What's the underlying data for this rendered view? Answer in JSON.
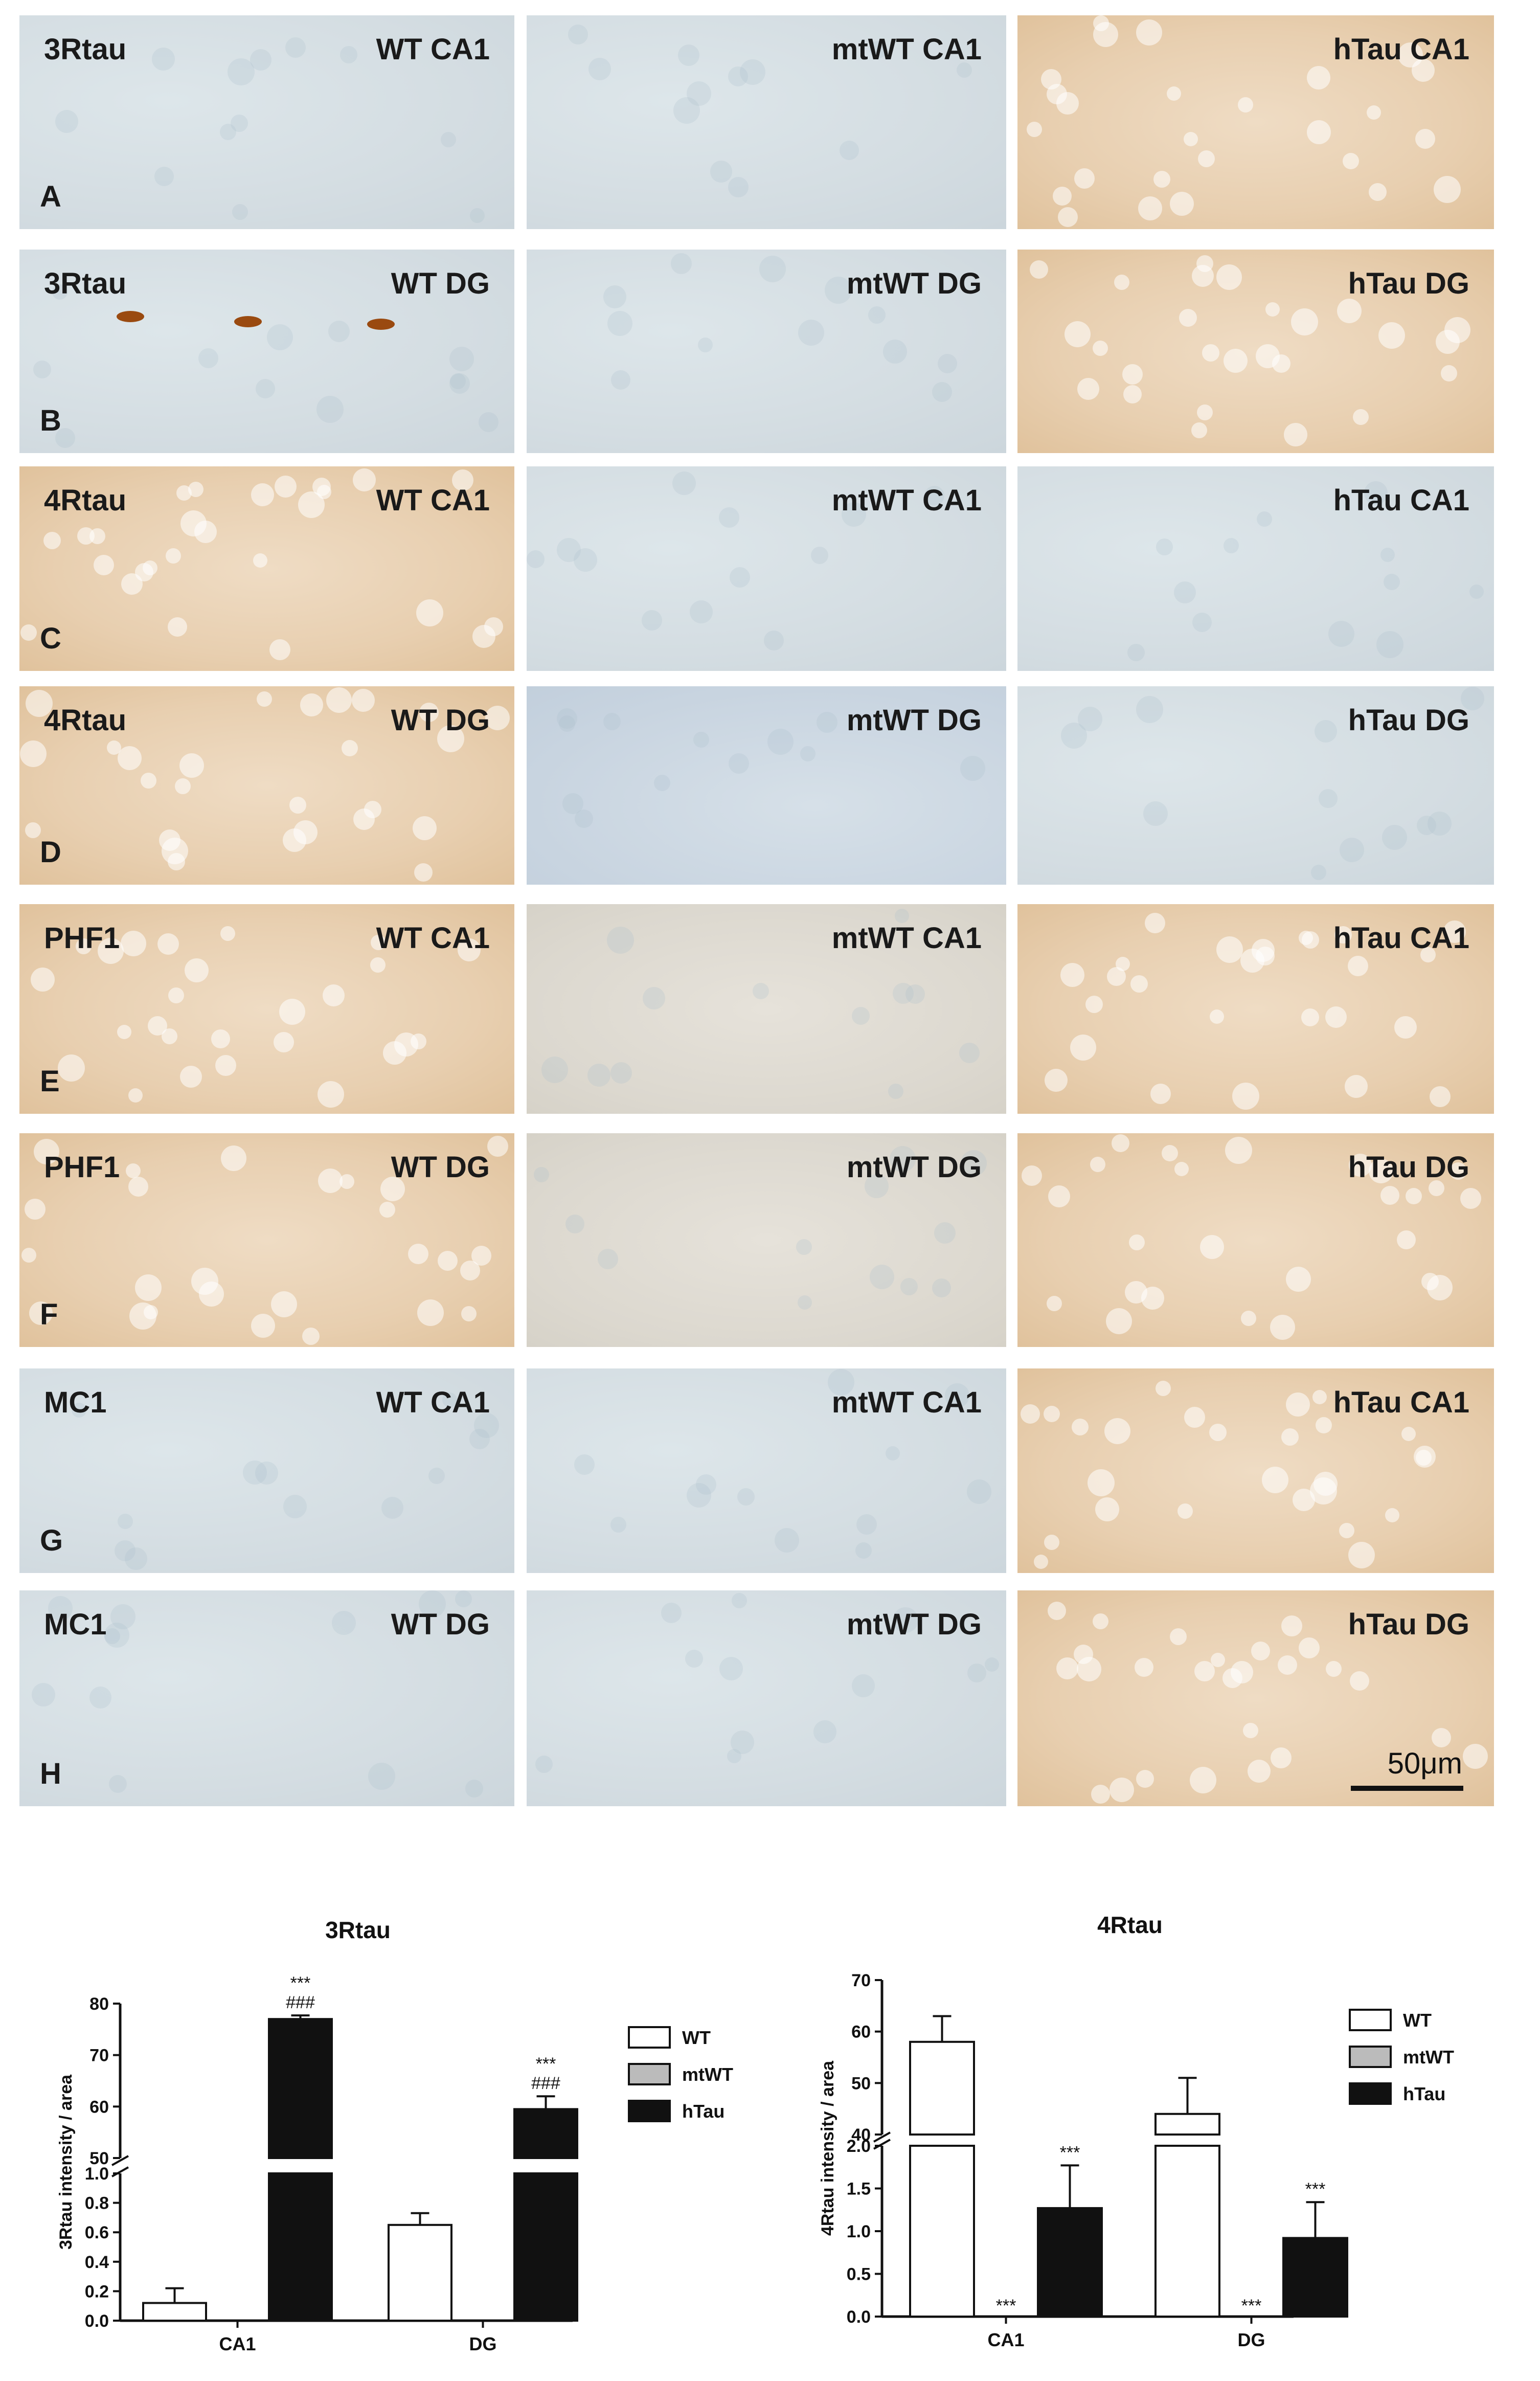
{
  "figure": {
    "rows": [
      {
        "stain": "3Rtau",
        "letter": "A",
        "conditions": [
          "WT CA1",
          "mtWT CA1",
          "hTau CA1"
        ]
      },
      {
        "stain": "3Rtau",
        "letter": "B",
        "conditions": [
          "WT DG",
          "mtWT DG",
          "hTau DG"
        ]
      },
      {
        "stain": "4Rtau",
        "letter": "C",
        "conditions": [
          "WT CA1",
          "mtWT CA1",
          "hTau CA1"
        ]
      },
      {
        "stain": "4Rtau",
        "letter": "D",
        "conditions": [
          "WT DG",
          "mtWT DG",
          "hTau DG"
        ]
      },
      {
        "stain": "PHF1",
        "letter": "E",
        "conditions": [
          "WT CA1",
          "mtWT CA1",
          "hTau CA1"
        ]
      },
      {
        "stain": "PHF1",
        "letter": "F",
        "conditions": [
          "WT DG",
          "mtWT DG",
          "hTau DG"
        ]
      },
      {
        "stain": "MC1",
        "letter": "G",
        "conditions": [
          "WT CA1",
          "mtWT CA1",
          "hTau CA1"
        ]
      },
      {
        "stain": "MC1",
        "letter": "H",
        "conditions": [
          "WT DG",
          "mtWT DG",
          "hTau DG"
        ]
      }
    ],
    "scale_bar_label": "50μm",
    "colors": {
      "blue_stain": "#d6dfe4",
      "dab_brown": "#e6c9a6",
      "dark_brown": "#9a4a10"
    }
  },
  "chart_data": [
    {
      "type": "bar",
      "title": "3Rtau",
      "ylabel": "3Rtau intensity / area",
      "xlabel": "",
      "categories": [
        "CA1",
        "DG"
      ],
      "series": [
        {
          "name": "WT",
          "values": [
            0.12,
            0.65
          ],
          "errors": [
            0.1,
            0.08
          ],
          "color": "#ffffff"
        },
        {
          "name": "mtWT",
          "values": [
            0,
            0
          ],
          "errors": [
            0,
            0
          ],
          "color": "#bbbbbb"
        },
        {
          "name": "hTau",
          "values": [
            77,
            59.5
          ],
          "errors": [
            0.7,
            2.5
          ],
          "color": "#111111"
        }
      ],
      "axis_break": {
        "lower": {
          "range": [
            0,
            1.0
          ],
          "ticks": [
            "0.0",
            "0.2",
            "0.4",
            "0.6",
            "0.8",
            "1.0"
          ]
        },
        "upper": {
          "range": [
            50,
            80
          ],
          "ticks": [
            "50",
            "60",
            "70",
            "80"
          ]
        }
      },
      "annotations": [
        {
          "category": "CA1",
          "series": "hTau",
          "text": [
            "***",
            "###"
          ]
        },
        {
          "category": "DG",
          "series": "hTau",
          "text": [
            "***",
            "###"
          ]
        }
      ],
      "legend_position": "right"
    },
    {
      "type": "bar",
      "title": "4Rtau",
      "ylabel": "4Rtau intensity / area",
      "xlabel": "",
      "categories": [
        "CA1",
        "DG"
      ],
      "series": [
        {
          "name": "WT",
          "values": [
            58,
            44
          ],
          "errors": [
            5,
            7
          ],
          "color": "#ffffff"
        },
        {
          "name": "mtWT",
          "values": [
            0,
            0
          ],
          "errors": [
            0,
            0
          ],
          "color": "#bbbbbb"
        },
        {
          "name": "hTau",
          "values": [
            1.27,
            0.92
          ],
          "errors": [
            0.5,
            0.42
          ],
          "color": "#111111"
        }
      ],
      "axis_break": {
        "lower": {
          "range": [
            0,
            2.0
          ],
          "ticks": [
            "0.0",
            "0.5",
            "1.0",
            "1.5",
            "2.0"
          ]
        },
        "upper": {
          "range": [
            40,
            70
          ],
          "ticks": [
            "40",
            "50",
            "60",
            "70"
          ]
        }
      },
      "annotations": [
        {
          "category": "CA1",
          "series": "mtWT",
          "text": [
            "***"
          ]
        },
        {
          "category": "CA1",
          "series": "hTau",
          "text": [
            "***"
          ]
        },
        {
          "category": "DG",
          "series": "mtWT",
          "text": [
            "***"
          ]
        },
        {
          "category": "DG",
          "series": "hTau",
          "text": [
            "***"
          ]
        }
      ],
      "legend_position": "right"
    }
  ]
}
